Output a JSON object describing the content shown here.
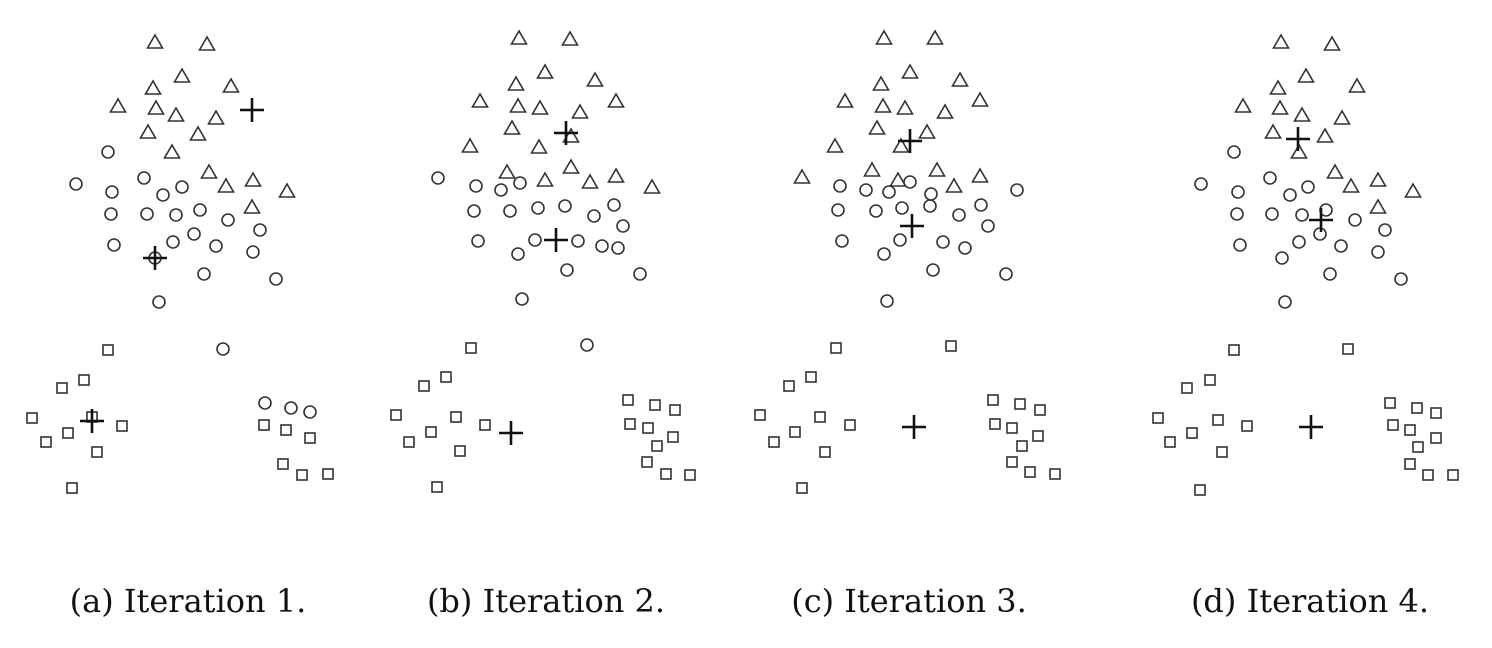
{
  "figure": {
    "panels": [
      {
        "caption": "(a) Iteration 1."
      },
      {
        "caption": "(b) Iteration 2."
      },
      {
        "caption": "(c) Iteration 3."
      },
      {
        "caption": "(d) Iteration 4."
      }
    ]
  },
  "chart_data": [
    {
      "type": "scatter",
      "title": "(a) Iteration 1.",
      "marker_color": "#333333",
      "series": [
        {
          "marker": "triangle",
          "points": [
            [
              155,
              42
            ],
            [
              207,
              44
            ],
            [
              153,
              88
            ],
            [
              182,
              76
            ],
            [
              231,
              86
            ],
            [
              118,
              106
            ],
            [
              156,
              108
            ],
            [
              176,
              115
            ],
            [
              216,
              118
            ],
            [
              148,
              132
            ],
            [
              198,
              134
            ],
            [
              172,
              152
            ],
            [
              209,
              172
            ],
            [
              226,
              186
            ],
            [
              253,
              180
            ],
            [
              287,
              191
            ],
            [
              252,
              207
            ]
          ]
        },
        {
          "marker": "circle",
          "points": [
            [
              108,
              152
            ],
            [
              76,
              184
            ],
            [
              112,
              192
            ],
            [
              144,
              178
            ],
            [
              163,
              195
            ],
            [
              182,
              187
            ],
            [
              111,
              214
            ],
            [
              147,
              214
            ],
            [
              176,
              215
            ],
            [
              200,
              210
            ],
            [
              228,
              220
            ],
            [
              260,
              230
            ],
            [
              114,
              245
            ],
            [
              173,
              242
            ],
            [
              194,
              234
            ],
            [
              216,
              246
            ],
            [
              253,
              252
            ],
            [
              155,
              258
            ],
            [
              204,
              274
            ],
            [
              276,
              279
            ],
            [
              159,
              302
            ],
            [
              223,
              349
            ]
          ]
        },
        {
          "marker": "square",
          "points": [
            [
              108,
              350
            ],
            [
              62,
              388
            ],
            [
              84,
              380
            ],
            [
              32,
              418
            ],
            [
              68,
              433
            ],
            [
              46,
              442
            ],
            [
              92,
              417
            ],
            [
              122,
              426
            ],
            [
              97,
              452
            ],
            [
              72,
              488
            ],
            [
              264,
              425
            ],
            [
              286,
              430
            ],
            [
              310,
              438
            ],
            [
              283,
              464
            ],
            [
              302,
              475
            ],
            [
              328,
              474
            ]
          ]
        },
        {
          "marker": "circle",
          "points": [
            [
              265,
              403
            ],
            [
              291,
              408
            ],
            [
              310,
              412
            ]
          ]
        }
      ],
      "centroids": [
        [
          252,
          110
        ],
        [
          155,
          258
        ],
        [
          92,
          421
        ]
      ]
    },
    {
      "type": "scatter",
      "title": "(b) Iteration 2.",
      "marker_color": "#333333",
      "series": [
        {
          "marker": "triangle",
          "points": [
            [
              519,
              38
            ],
            [
              570,
              39
            ],
            [
              516,
              84
            ],
            [
              545,
              72
            ],
            [
              595,
              80
            ],
            [
              480,
              101
            ],
            [
              518,
              106
            ],
            [
              540,
              108
            ],
            [
              580,
              112
            ],
            [
              616,
              101
            ],
            [
              512,
              128
            ],
            [
              539,
              147
            ],
            [
              470,
              146
            ],
            [
              571,
              136
            ],
            [
              507,
              172
            ],
            [
              571,
              167
            ],
            [
              545,
              180
            ],
            [
              590,
              182
            ],
            [
              616,
              176
            ],
            [
              652,
              187
            ]
          ]
        },
        {
          "marker": "circle",
          "points": [
            [
              438,
              178
            ],
            [
              476,
              186
            ],
            [
              501,
              190
            ],
            [
              520,
              183
            ],
            [
              474,
              211
            ],
            [
              510,
              211
            ],
            [
              538,
              208
            ],
            [
              565,
              206
            ],
            [
              594,
              216
            ],
            [
              614,
              205
            ],
            [
              623,
              226
            ],
            [
              478,
              241
            ],
            [
              535,
              240
            ],
            [
              578,
              241
            ],
            [
              602,
              246
            ],
            [
              518,
              254
            ],
            [
              618,
              248
            ],
            [
              567,
              270
            ],
            [
              640,
              274
            ],
            [
              522,
              299
            ],
            [
              587,
              345
            ]
          ]
        },
        {
          "marker": "square",
          "points": [
            [
              471,
              348
            ],
            [
              424,
              386
            ],
            [
              446,
              377
            ],
            [
              396,
              415
            ],
            [
              431,
              432
            ],
            [
              409,
              442
            ],
            [
              456,
              417
            ],
            [
              485,
              425
            ],
            [
              460,
              451
            ],
            [
              437,
              487
            ]
          ]
        },
        {
          "marker": "square",
          "points": [
            [
              628,
              400
            ],
            [
              655,
              405
            ],
            [
              675,
              410
            ],
            [
              630,
              424
            ],
            [
              648,
              428
            ],
            [
              673,
              437
            ],
            [
              657,
              446
            ],
            [
              647,
              462
            ],
            [
              666,
              474
            ],
            [
              690,
              475
            ]
          ]
        }
      ],
      "centroids": [
        [
          566,
          133
        ],
        [
          556,
          240
        ],
        [
          511,
          433
        ]
      ]
    },
    {
      "type": "scatter",
      "title": "(c) Iteration 3.",
      "marker_color": "#333333",
      "series": [
        {
          "marker": "triangle",
          "points": [
            [
              884,
              38
            ],
            [
              935,
              38
            ],
            [
              881,
              84
            ],
            [
              910,
              72
            ],
            [
              960,
              80
            ],
            [
              845,
              101
            ],
            [
              883,
              106
            ],
            [
              905,
              108
            ],
            [
              945,
              112
            ],
            [
              980,
              100
            ],
            [
              877,
              128
            ],
            [
              901,
              146
            ],
            [
              835,
              146
            ],
            [
              927,
              132
            ],
            [
              802,
              177
            ],
            [
              872,
              170
            ],
            [
              898,
              180
            ],
            [
              937,
              170
            ],
            [
              980,
              176
            ],
            [
              954,
              186
            ]
          ]
        },
        {
          "marker": "circle",
          "points": [
            [
              840,
              186
            ],
            [
              866,
              190
            ],
            [
              889,
              192
            ],
            [
              910,
              182
            ],
            [
              931,
              194
            ],
            [
              1017,
              190
            ],
            [
              838,
              210
            ],
            [
              876,
              211
            ],
            [
              902,
              208
            ],
            [
              930,
              206
            ],
            [
              959,
              215
            ],
            [
              981,
              205
            ],
            [
              988,
              226
            ],
            [
              842,
              241
            ],
            [
              884,
              254
            ],
            [
              900,
              240
            ],
            [
              943,
              242
            ],
            [
              965,
              248
            ],
            [
              933,
              270
            ],
            [
              1006,
              274
            ],
            [
              887,
              301
            ]
          ]
        },
        {
          "marker": "square",
          "points": [
            [
              836,
              348
            ],
            [
              951,
              346
            ],
            [
              789,
              386
            ],
            [
              811,
              377
            ],
            [
              760,
              415
            ],
            [
              795,
              432
            ],
            [
              774,
              442
            ],
            [
              820,
              417
            ],
            [
              850,
              425
            ],
            [
              825,
              452
            ],
            [
              802,
              488
            ]
          ]
        },
        {
          "marker": "square",
          "points": [
            [
              993,
              400
            ],
            [
              1020,
              404
            ],
            [
              1040,
              410
            ],
            [
              995,
              424
            ],
            [
              1012,
              428
            ],
            [
              1038,
              436
            ],
            [
              1022,
              446
            ],
            [
              1012,
              462
            ],
            [
              1030,
              472
            ],
            [
              1055,
              474
            ]
          ]
        }
      ],
      "centroids": [
        [
          910,
          141
        ],
        [
          912,
          226
        ],
        [
          914,
          427
        ]
      ]
    },
    {
      "type": "scatter",
      "title": "(d) Iteration 4.",
      "marker_color": "#333333",
      "series": [
        {
          "marker": "triangle",
          "points": [
            [
              1281,
              42
            ],
            [
              1332,
              44
            ],
            [
              1278,
              88
            ],
            [
              1306,
              76
            ],
            [
              1357,
              86
            ],
            [
              1243,
              106
            ],
            [
              1280,
              108
            ],
            [
              1302,
              115
            ],
            [
              1342,
              118
            ],
            [
              1273,
              132
            ],
            [
              1325,
              136
            ],
            [
              1299,
              152
            ],
            [
              1335,
              172
            ],
            [
              1351,
              186
            ],
            [
              1378,
              180
            ],
            [
              1413,
              191
            ],
            [
              1378,
              207
            ]
          ]
        },
        {
          "marker": "circle",
          "points": [
            [
              1234,
              152
            ],
            [
              1201,
              184
            ],
            [
              1238,
              192
            ],
            [
              1270,
              178
            ],
            [
              1290,
              195
            ],
            [
              1308,
              187
            ],
            [
              1237,
              214
            ],
            [
              1272,
              214
            ],
            [
              1302,
              215
            ],
            [
              1326,
              210
            ],
            [
              1355,
              220
            ],
            [
              1385,
              230
            ],
            [
              1240,
              245
            ],
            [
              1299,
              242
            ],
            [
              1320,
              234
            ],
            [
              1341,
              246
            ],
            [
              1378,
              252
            ],
            [
              1282,
              258
            ],
            [
              1330,
              274
            ],
            [
              1401,
              279
            ],
            [
              1285,
              302
            ]
          ]
        },
        {
          "marker": "square",
          "points": [
            [
              1234,
              350
            ],
            [
              1348,
              349
            ],
            [
              1187,
              388
            ],
            [
              1210,
              380
            ],
            [
              1158,
              418
            ],
            [
              1192,
              433
            ],
            [
              1170,
              442
            ],
            [
              1218,
              420
            ],
            [
              1247,
              426
            ],
            [
              1222,
              452
            ],
            [
              1200,
              490
            ]
          ]
        },
        {
          "marker": "square",
          "points": [
            [
              1390,
              403
            ],
            [
              1417,
              408
            ],
            [
              1436,
              413
            ],
            [
              1393,
              425
            ],
            [
              1410,
              430
            ],
            [
              1436,
              438
            ],
            [
              1418,
              447
            ],
            [
              1410,
              464
            ],
            [
              1428,
              475
            ],
            [
              1453,
              475
            ]
          ]
        }
      ],
      "centroids": [
        [
          1298,
          139
        ],
        [
          1321,
          220
        ],
        [
          1311,
          427
        ]
      ]
    }
  ]
}
